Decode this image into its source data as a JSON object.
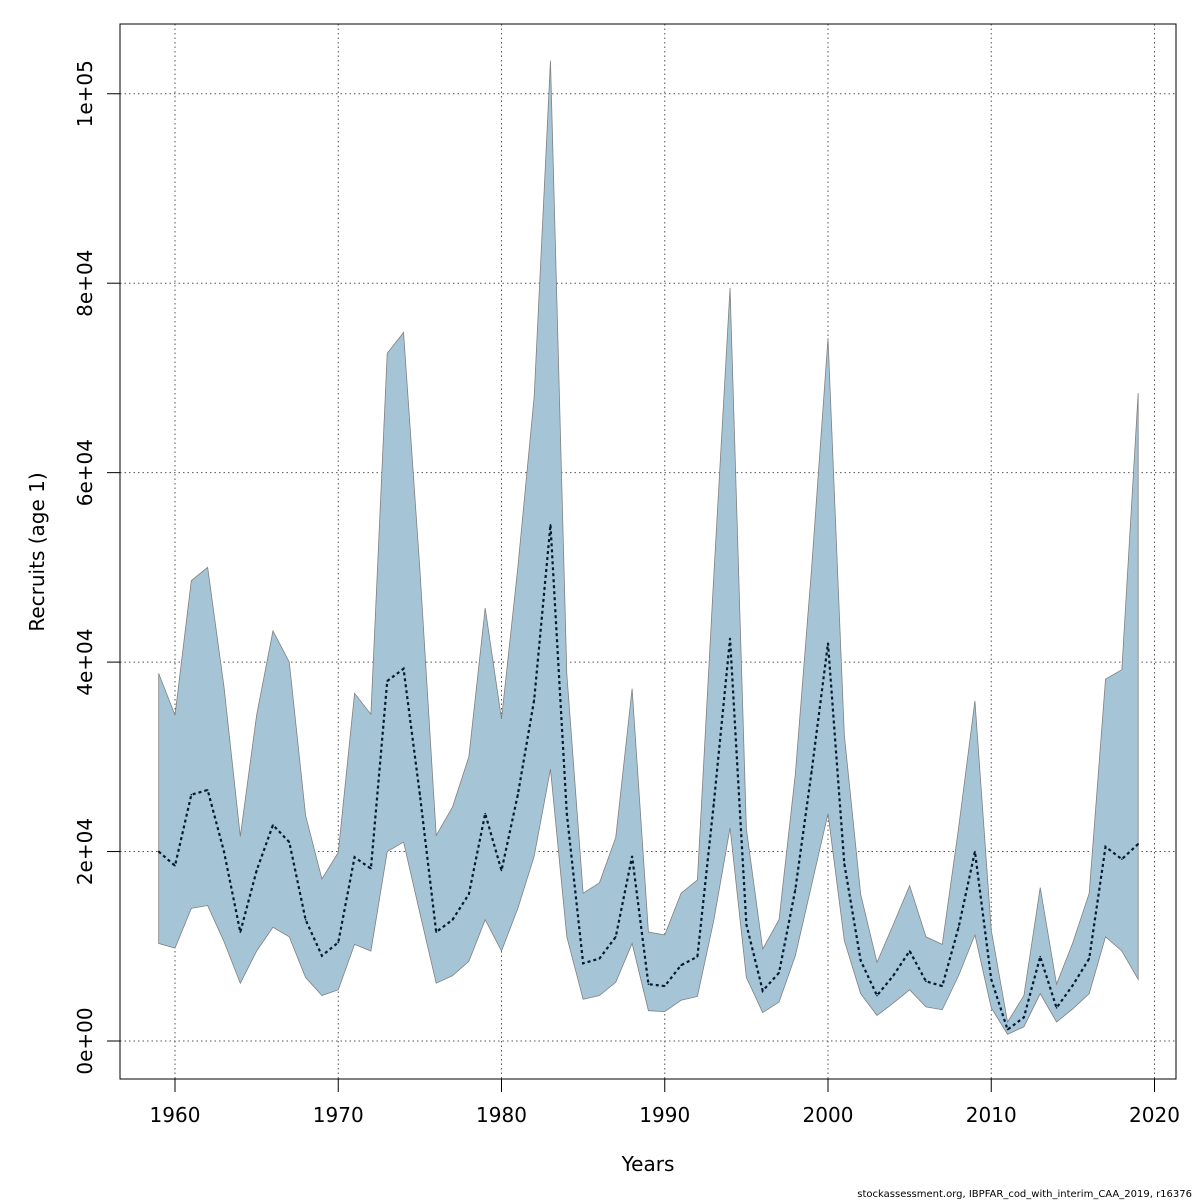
{
  "chart_data": {
    "type": "area",
    "xlabel": "Years",
    "ylabel": "Recruits (age 1)",
    "xlim": [
      1959,
      2019
    ],
    "ylim": [
      0,
      105000
    ],
    "x_ticks": [
      1960,
      1970,
      1980,
      1990,
      2000,
      2010,
      2020
    ],
    "y_ticks": [
      0,
      20000,
      40000,
      60000,
      80000,
      100000
    ],
    "x_tick_labels": [
      "1960",
      "1970",
      "1980",
      "1990",
      "2000",
      "2010",
      "2020"
    ],
    "y_tick_labels": [
      "0e+00",
      "2e+04",
      "4e+04",
      "6e+04",
      "8e+04",
      "1e+05"
    ],
    "grid": true,
    "band_color": "#a5c5d6",
    "band_edge_color": "#808080",
    "line_color": "#001a33",
    "x": [
      1959,
      1960,
      1961,
      1962,
      1963,
      1964,
      1965,
      1966,
      1967,
      1968,
      1969,
      1970,
      1971,
      1972,
      1973,
      1974,
      1975,
      1976,
      1977,
      1978,
      1979,
      1980,
      1981,
      1982,
      1983,
      1984,
      1985,
      1986,
      1987,
      1988,
      1989,
      1990,
      1991,
      1992,
      1993,
      1994,
      1995,
      1996,
      1997,
      1998,
      1999,
      2000,
      2001,
      2002,
      2003,
      2004,
      2005,
      2006,
      2007,
      2008,
      2009,
      2010,
      2011,
      2012,
      2013,
      2014,
      2015,
      2016,
      2017,
      2018,
      2019
    ],
    "series": [
      {
        "values": [
          20000,
          18500,
          26000,
          26500,
          20000,
          11500,
          18000,
          22800,
          21000,
          12800,
          9000,
          10400,
          19400,
          18200,
          38000,
          39300,
          26000,
          11500,
          12800,
          15500,
          24000,
          18000,
          26000,
          36000,
          54500,
          24000,
          8200,
          8700,
          11000,
          19500,
          6000,
          5800,
          8000,
          8900,
          25000,
          42500,
          12300,
          5300,
          7200,
          16000,
          28500,
          42000,
          18700,
          8500,
          4800,
          6900,
          9500,
          6300,
          5800,
          12000,
          20000,
          6500,
          1200,
          2500,
          8900,
          3500,
          5900,
          8700,
          20500,
          19200,
          20800
        ]
      },
      {
        "values": [
          10300,
          9800,
          14000,
          14300,
          10500,
          6100,
          9500,
          12000,
          11000,
          6700,
          4800,
          5400,
          10200,
          9500,
          20000,
          21000,
          13500,
          6100,
          6900,
          8400,
          12800,
          9500,
          14000,
          19500,
          28700,
          11000,
          4400,
          4800,
          6200,
          10300,
          3200,
          3100,
          4300,
          4700,
          12700,
          22500,
          6700,
          3000,
          4100,
          9000,
          16500,
          24000,
          10600,
          5000,
          2700,
          4000,
          5400,
          3600,
          3300,
          6900,
          11200,
          3500,
          700,
          1500,
          5000,
          2000,
          3400,
          5000,
          11000,
          9500,
          6500
        ]
      },
      {
        "values": [
          38800,
          34400,
          48600,
          50000,
          37400,
          21600,
          34400,
          43300,
          40000,
          23800,
          17100,
          19900,
          36700,
          34500,
          72600,
          74800,
          49800,
          21700,
          24700,
          30000,
          45700,
          34000,
          50000,
          68000,
          103500,
          38800,
          15600,
          16700,
          21500,
          37200,
          11500,
          11200,
          15600,
          17000,
          49000,
          79500,
          22400,
          9700,
          12800,
          28200,
          50000,
          74200,
          32300,
          15500,
          8300,
          12300,
          16400,
          11000,
          10200,
          22500,
          35900,
          11700,
          2000,
          4800,
          16200,
          6000,
          10400,
          15600,
          38200,
          39200,
          68400
        ]
      }
    ]
  },
  "credit": "stockassessment.org, IBPFAR_cod_with_interim_CAA_2019, r16376"
}
